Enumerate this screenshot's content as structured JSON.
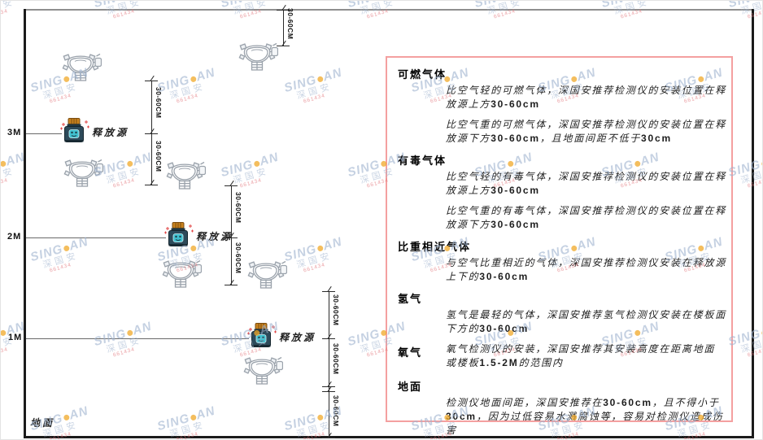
{
  "watermark": {
    "brand_left": "SING",
    "brand_right": "AN",
    "cn": "深国安",
    "code": "661434"
  },
  "diagram": {
    "dim_label": "30-60CM",
    "source_label": "释放源",
    "ground_label": "地面",
    "height_3": "3M",
    "height_2": "2M",
    "height_1": "1M"
  },
  "panel": {
    "sections": [
      {
        "heading": "可燃气体",
        "paragraphs": [
          "比空气轻的可燃气体，深国安推荐检测仪的安装位置在释放源上方30-60cm",
          "比空气重的可燃气体，深国安推荐检测仪的安装位置在释放源下方30-60cm，且地面间距不低于30cm"
        ]
      },
      {
        "heading": "有毒气体",
        "paragraphs": [
          "比空气轻的有毒气体，深国安推荐检测仪的安装位置在释放源上方30-60cm",
          "比空气重的有毒气体，深国安推荐检测仪的安装位置在释放源下方30-60cm"
        ]
      },
      {
        "heading": "比重相近气体",
        "paragraphs": [
          "与空气比重相近的气体，深国安推荐检测仪安装在释放源上下的30-60cm"
        ]
      },
      {
        "heading": "氢气",
        "paragraphs": [
          "氢气是最轻的气体，深国安推荐氢气检测仪安装在楼板面下方的30-60cm"
        ]
      },
      {
        "heading": "氧气",
        "inline": true,
        "paragraphs": [
          "氧气检测仪的安装，深国安推荐其安装高度在距离地面或楼板1.5-2M的范围内"
        ]
      },
      {
        "heading": "地面",
        "paragraphs": [
          "检测仪地面间距，深国安推荐在30-60cm，且不得小于30cm，因为过低容易水溅腐蚀等，容易对检测仪造成伤害"
        ]
      }
    ]
  }
}
